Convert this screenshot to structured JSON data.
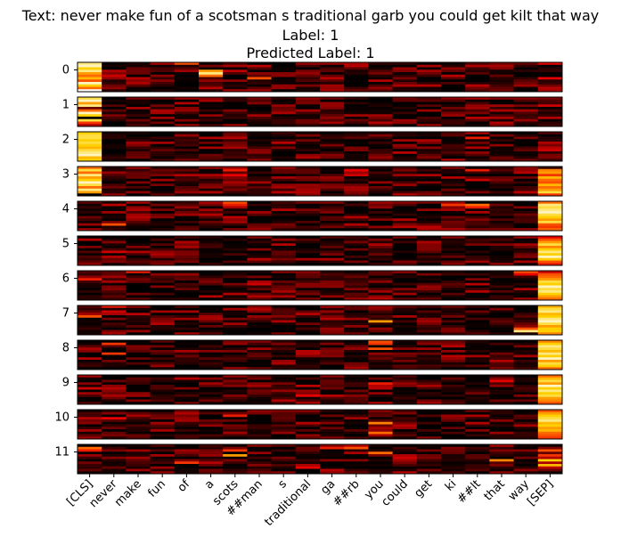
{
  "chart_data": {
    "type": "heatmap",
    "title_lines": [
      "Text: never make fun of a scotsman s traditional garb you could get kilt that way",
      "Label: 1",
      "Predicted Label: 1"
    ],
    "tokens": [
      "[CLS]",
      "never",
      "make",
      "fun",
      "of",
      "a",
      "scots",
      "##man",
      "s",
      "traditional",
      "ga",
      "##rb",
      "you",
      "could",
      "get",
      "ki",
      "##lt",
      "that",
      "way",
      "[SEP]"
    ],
    "layers": [
      "0",
      "1",
      "2",
      "3",
      "4",
      "5",
      "6",
      "7",
      "8",
      "9",
      "10",
      "11"
    ],
    "heads_per_layer": 12,
    "colormap": "hot",
    "colormap_stops": [
      "#000000",
      "#7a0000",
      "#e60000",
      "#ff6a00",
      "#ffd000",
      "#ffffff"
    ],
    "grid": false,
    "focus": [
      {
        "layer": "0",
        "cells": [
          [
            0,
            0,
            0.9
          ],
          [
            0,
            1,
            0.95
          ],
          [
            0,
            2,
            0.8
          ],
          [
            0,
            3,
            0.9
          ],
          [
            0,
            4,
            0.7
          ],
          [
            0,
            5,
            0.6
          ],
          [
            0,
            6,
            0.75
          ],
          [
            0,
            7,
            0.55
          ],
          [
            0,
            8,
            0.95
          ],
          [
            0,
            9,
            0.8
          ],
          [
            0,
            10,
            0.6
          ],
          [
            0,
            11,
            1.0
          ],
          [
            4,
            0,
            0.55
          ],
          [
            5,
            3,
            0.7
          ],
          [
            5,
            4,
            0.9
          ],
          [
            5,
            5,
            0.6
          ],
          [
            7,
            6,
            0.55
          ],
          [
            1,
            5,
            0.35
          ],
          [
            19,
            0,
            0.4
          ],
          [
            19,
            6,
            0.4
          ]
        ]
      },
      {
        "layer": "1",
        "cells": [
          [
            0,
            0,
            0.85
          ],
          [
            0,
            1,
            0.95
          ],
          [
            0,
            2,
            0.7
          ],
          [
            0,
            3,
            0.9
          ],
          [
            0,
            5,
            0.6
          ],
          [
            0,
            6,
            0.95
          ],
          [
            0,
            7,
            0.8
          ],
          [
            0,
            9,
            0.85
          ],
          [
            0,
            10,
            0.5
          ],
          [
            4,
            2,
            0.3
          ],
          [
            19,
            3,
            0.35
          ],
          [
            19,
            8,
            0.3
          ]
        ]
      },
      {
        "layer": "2",
        "cells": [
          [
            0,
            0,
            0.8
          ],
          [
            0,
            1,
            0.85
          ],
          [
            0,
            2,
            0.85
          ],
          [
            0,
            3,
            0.8
          ],
          [
            0,
            4,
            0.85
          ],
          [
            0,
            5,
            0.8
          ],
          [
            0,
            6,
            0.75
          ],
          [
            0,
            7,
            0.85
          ],
          [
            0,
            8,
            0.9
          ],
          [
            0,
            9,
            0.95
          ],
          [
            0,
            10,
            0.75
          ],
          [
            0,
            11,
            0.8
          ],
          [
            16,
            2,
            0.45
          ],
          [
            19,
            4,
            0.3
          ],
          [
            19,
            7,
            0.35
          ]
        ]
      },
      {
        "layer": "3",
        "cells": [
          [
            0,
            0,
            0.6
          ],
          [
            0,
            1,
            0.85
          ],
          [
            0,
            2,
            0.6
          ],
          [
            0,
            3,
            0.9
          ],
          [
            0,
            4,
            0.7
          ],
          [
            0,
            5,
            0.8
          ],
          [
            0,
            6,
            0.95
          ],
          [
            0,
            7,
            0.85
          ],
          [
            0,
            8,
            0.6
          ],
          [
            0,
            9,
            0.9
          ],
          [
            0,
            10,
            0.7
          ],
          [
            6,
            1,
            0.45
          ],
          [
            6,
            3,
            0.4
          ],
          [
            11,
            1,
            0.4
          ],
          [
            11,
            3,
            0.35
          ],
          [
            16,
            1,
            0.45
          ],
          [
            16,
            5,
            0.35
          ],
          [
            19,
            1,
            0.65
          ],
          [
            19,
            2,
            0.7
          ],
          [
            19,
            3,
            0.5
          ],
          [
            19,
            4,
            0.75
          ],
          [
            19,
            5,
            0.6
          ],
          [
            19,
            6,
            0.55
          ],
          [
            19,
            7,
            0.75
          ],
          [
            19,
            8,
            0.6
          ],
          [
            19,
            9,
            0.7
          ],
          [
            19,
            10,
            0.85
          ],
          [
            19,
            11,
            0.5
          ]
        ]
      },
      {
        "layer": "4",
        "cells": [
          [
            6,
            0,
            0.55
          ],
          [
            6,
            1,
            0.45
          ],
          [
            1,
            9,
            0.55
          ],
          [
            15,
            1,
            0.5
          ],
          [
            16,
            1,
            0.6
          ],
          [
            16,
            2,
            0.45
          ],
          [
            19,
            0,
            0.6
          ],
          [
            19,
            1,
            0.9
          ],
          [
            19,
            2,
            0.85
          ],
          [
            19,
            3,
            0.9
          ],
          [
            19,
            4,
            0.95
          ],
          [
            19,
            5,
            0.85
          ],
          [
            19,
            6,
            0.8
          ],
          [
            19,
            7,
            0.7
          ],
          [
            19,
            8,
            0.85
          ],
          [
            19,
            9,
            0.55
          ],
          [
            19,
            10,
            0.5
          ],
          [
            19,
            11,
            0.6
          ]
        ]
      },
      {
        "layer": "5",
        "cells": [
          [
            19,
            0,
            0.4
          ],
          [
            19,
            1,
            0.55
          ],
          [
            19,
            2,
            0.7
          ],
          [
            19,
            3,
            0.85
          ],
          [
            19,
            4,
            0.65
          ],
          [
            19,
            5,
            0.8
          ],
          [
            19,
            6,
            0.9
          ],
          [
            19,
            7,
            0.8
          ],
          [
            19,
            8,
            0.95
          ],
          [
            19,
            9,
            0.8
          ],
          [
            19,
            10,
            0.55
          ],
          [
            19,
            11,
            0.45
          ],
          [
            1,
            6,
            0.35
          ],
          [
            12,
            3,
            0.3
          ]
        ]
      },
      {
        "layer": "6",
        "cells": [
          [
            19,
            0,
            0.35
          ],
          [
            19,
            1,
            0.55
          ],
          [
            19,
            2,
            0.6
          ],
          [
            19,
            3,
            0.7
          ],
          [
            19,
            4,
            0.85
          ],
          [
            19,
            5,
            0.8
          ],
          [
            19,
            6,
            0.95
          ],
          [
            19,
            7,
            0.85
          ],
          [
            19,
            8,
            0.9
          ],
          [
            19,
            9,
            0.8
          ],
          [
            19,
            10,
            0.7
          ],
          [
            19,
            11,
            0.6
          ],
          [
            18,
            0,
            0.55
          ],
          [
            18,
            1,
            0.4
          ],
          [
            2,
            0,
            0.45
          ],
          [
            0,
            3,
            0.45
          ],
          [
            7,
            5,
            0.35
          ]
        ]
      },
      {
        "layer": "7",
        "cells": [
          [
            19,
            0,
            0.75
          ],
          [
            19,
            1,
            0.85
          ],
          [
            19,
            2,
            0.9
          ],
          [
            19,
            3,
            0.75
          ],
          [
            19,
            4,
            0.8
          ],
          [
            19,
            5,
            0.9
          ],
          [
            19,
            6,
            0.95
          ],
          [
            19,
            7,
            0.85
          ],
          [
            19,
            8,
            0.7
          ],
          [
            19,
            9,
            0.8
          ],
          [
            19,
            10,
            0.8
          ],
          [
            19,
            11,
            0.65
          ],
          [
            18,
            10,
            0.9
          ],
          [
            18,
            9,
            0.55
          ],
          [
            12,
            6,
            0.7
          ],
          [
            0,
            4,
            0.55
          ],
          [
            1,
            0,
            0.45
          ],
          [
            1,
            2,
            0.35
          ]
        ]
      },
      {
        "layer": "8",
        "cells": [
          [
            19,
            0,
            0.65
          ],
          [
            19,
            1,
            0.8
          ],
          [
            19,
            2,
            0.9
          ],
          [
            19,
            3,
            0.85
          ],
          [
            19,
            4,
            0.75
          ],
          [
            19,
            5,
            0.9
          ],
          [
            19,
            6,
            0.8
          ],
          [
            19,
            7,
            0.95
          ],
          [
            19,
            8,
            0.7
          ],
          [
            19,
            9,
            0.85
          ],
          [
            19,
            10,
            0.8
          ],
          [
            19,
            11,
            0.6
          ],
          [
            12,
            0,
            0.55
          ],
          [
            12,
            1,
            0.5
          ],
          [
            12,
            3,
            0.55
          ],
          [
            1,
            1,
            0.5
          ],
          [
            1,
            5,
            0.5
          ]
        ]
      },
      {
        "layer": "9",
        "cells": [
          [
            19,
            0,
            0.6
          ],
          [
            19,
            1,
            0.75
          ],
          [
            19,
            2,
            0.85
          ],
          [
            19,
            3,
            0.7
          ],
          [
            19,
            4,
            0.95
          ],
          [
            19,
            5,
            0.8
          ],
          [
            19,
            6,
            0.9
          ],
          [
            19,
            7,
            0.8
          ],
          [
            19,
            8,
            0.85
          ],
          [
            19,
            9,
            0.7
          ],
          [
            19,
            10,
            0.65
          ],
          [
            19,
            11,
            0.55
          ],
          [
            12,
            3,
            0.45
          ],
          [
            17,
            2,
            0.4
          ],
          [
            9,
            8,
            0.4
          ],
          [
            0,
            5,
            0.35
          ]
        ]
      },
      {
        "layer": "10",
        "cells": [
          [
            19,
            0,
            0.55
          ],
          [
            19,
            1,
            0.7
          ],
          [
            19,
            2,
            0.8
          ],
          [
            19,
            3,
            0.85
          ],
          [
            19,
            4,
            0.9
          ],
          [
            19,
            5,
            0.75
          ],
          [
            19,
            6,
            0.8
          ],
          [
            19,
            7,
            0.7
          ],
          [
            19,
            8,
            0.75
          ],
          [
            19,
            9,
            0.6
          ],
          [
            19,
            10,
            0.55
          ],
          [
            19,
            11,
            0.5
          ],
          [
            12,
            5,
            0.65
          ],
          [
            12,
            9,
            0.6
          ],
          [
            6,
            2,
            0.45
          ],
          [
            1,
            3,
            0.4
          ]
        ]
      },
      {
        "layer": "11",
        "cells": [
          [
            0,
            1,
            0.6
          ],
          [
            0,
            2,
            0.45
          ],
          [
            6,
            4,
            0.7
          ],
          [
            6,
            2,
            0.5
          ],
          [
            10,
            1,
            0.45
          ],
          [
            11,
            1,
            0.55
          ],
          [
            12,
            3,
            0.6
          ],
          [
            17,
            6,
            0.65
          ],
          [
            4,
            7,
            0.5
          ],
          [
            19,
            2,
            0.55
          ],
          [
            19,
            6,
            0.8
          ],
          [
            19,
            8,
            0.75
          ],
          [
            19,
            4,
            0.5
          ],
          [
            9,
            9,
            0.4
          ],
          [
            13,
            5,
            0.35
          ]
        ]
      }
    ]
  }
}
